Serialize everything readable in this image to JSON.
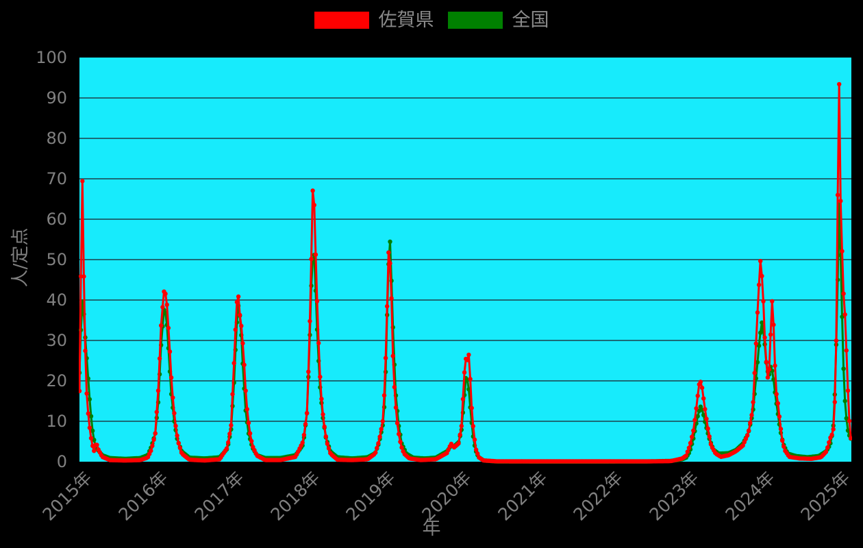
{
  "page": {
    "background": "#000000",
    "text_color": "#808080"
  },
  "legend": {
    "items": [
      {
        "label": "佐賀県",
        "color": "#ff0000"
      },
      {
        "label": "全国",
        "color": "#008000"
      }
    ]
  },
  "chart_data": {
    "type": "line",
    "title": "",
    "xlabel": "年",
    "ylabel": "人/定点",
    "xlim": [
      2015.0,
      2025.18
    ],
    "ylim": [
      0,
      100
    ],
    "y_ticks": [
      0,
      10,
      20,
      30,
      40,
      50,
      60,
      70,
      80,
      90,
      100
    ],
    "x_ticks": [
      {
        "t": 2015,
        "label": "2015年"
      },
      {
        "t": 2016,
        "label": "2016年"
      },
      {
        "t": 2017,
        "label": "2017年"
      },
      {
        "t": 2018,
        "label": "2018年"
      },
      {
        "t": 2019,
        "label": "2019年"
      },
      {
        "t": 2020,
        "label": "2020年"
      },
      {
        "t": 2021,
        "label": "2021年"
      },
      {
        "t": 2022,
        "label": "2022年"
      },
      {
        "t": 2023,
        "label": "2023年"
      },
      {
        "t": 2024,
        "label": "2024年"
      },
      {
        "t": 2025,
        "label": "2025年"
      }
    ],
    "grid": "horizontal-only",
    "plot_bg": "#17ebfc",
    "grid_color": "#1b6a76",
    "legend_position": "top-center",
    "marker": "circle",
    "sampling": "weekly",
    "series": [
      {
        "name": "佐賀県",
        "color": "#ff0000",
        "points": [
          [
            2015.0,
            17.5
          ],
          [
            2015.02,
            47
          ],
          [
            2015.04,
            71.3
          ],
          [
            2015.06,
            42.5
          ],
          [
            2015.08,
            24.7
          ],
          [
            2015.1,
            15
          ],
          [
            2015.13,
            9
          ],
          [
            2015.16,
            5
          ],
          [
            2015.19,
            2.5
          ],
          [
            2015.22,
            4.8
          ],
          [
            2015.25,
            3
          ],
          [
            2015.3,
            1.2
          ],
          [
            2015.4,
            0.4
          ],
          [
            2015.6,
            0.3
          ],
          [
            2015.8,
            0.4
          ],
          [
            2015.9,
            1
          ],
          [
            2015.95,
            3
          ],
          [
            2016.0,
            7
          ],
          [
            2016.04,
            18
          ],
          [
            2016.08,
            35
          ],
          [
            2016.12,
            43
          ],
          [
            2016.15,
            40
          ],
          [
            2016.19,
            28
          ],
          [
            2016.22,
            18
          ],
          [
            2016.26,
            10
          ],
          [
            2016.3,
            5
          ],
          [
            2016.35,
            2
          ],
          [
            2016.45,
            0.5
          ],
          [
            2016.65,
            0.3
          ],
          [
            2016.85,
            0.6
          ],
          [
            2016.95,
            3.5
          ],
          [
            2017.0,
            9
          ],
          [
            2017.04,
            25
          ],
          [
            2017.07,
            38
          ],
          [
            2017.09,
            42.3
          ],
          [
            2017.12,
            35.2
          ],
          [
            2017.14,
            33
          ],
          [
            2017.17,
            25
          ],
          [
            2017.2,
            15
          ],
          [
            2017.24,
            8
          ],
          [
            2017.28,
            4
          ],
          [
            2017.34,
            1.5
          ],
          [
            2017.45,
            0.4
          ],
          [
            2017.65,
            0.4
          ],
          [
            2017.85,
            1.2
          ],
          [
            2017.95,
            5
          ],
          [
            2018.0,
            12
          ],
          [
            2018.03,
            28
          ],
          [
            2018.06,
            52
          ],
          [
            2018.08,
            69.8
          ],
          [
            2018.1,
            62
          ],
          [
            2018.12,
            48
          ],
          [
            2018.15,
            31
          ],
          [
            2018.18,
            18
          ],
          [
            2018.22,
            10
          ],
          [
            2018.26,
            5
          ],
          [
            2018.31,
            2
          ],
          [
            2018.4,
            0.5
          ],
          [
            2018.6,
            0.4
          ],
          [
            2018.8,
            0.6
          ],
          [
            2018.9,
            2
          ],
          [
            2018.95,
            5
          ],
          [
            2019.0,
            10
          ],
          [
            2019.03,
            20
          ],
          [
            2019.06,
            40
          ],
          [
            2019.08,
            53.9
          ],
          [
            2019.11,
            45
          ],
          [
            2019.13,
            28
          ],
          [
            2019.16,
            16
          ],
          [
            2019.2,
            8
          ],
          [
            2019.24,
            4
          ],
          [
            2019.28,
            2
          ],
          [
            2019.35,
            0.8
          ],
          [
            2019.5,
            0.4
          ],
          [
            2019.7,
            0.6
          ],
          [
            2019.85,
            2.2
          ],
          [
            2019.9,
            4.5
          ],
          [
            2019.94,
            3.5
          ],
          [
            2020.0,
            4.5
          ],
          [
            2020.04,
            9
          ],
          [
            2020.07,
            20
          ],
          [
            2020.09,
            26
          ],
          [
            2020.11,
            24.2
          ],
          [
            2020.13,
            27.8
          ],
          [
            2020.15,
            22
          ],
          [
            2020.17,
            14
          ],
          [
            2020.2,
            7
          ],
          [
            2020.23,
            3
          ],
          [
            2020.27,
            1
          ],
          [
            2020.33,
            0.3
          ],
          [
            2020.5,
            0.1
          ],
          [
            2021.0,
            0.08
          ],
          [
            2021.5,
            0.08
          ],
          [
            2022.0,
            0.08
          ],
          [
            2022.5,
            0.08
          ],
          [
            2022.8,
            0.15
          ],
          [
            2022.95,
            0.8
          ],
          [
            2023.0,
            1.5
          ],
          [
            2023.05,
            4
          ],
          [
            2023.1,
            8
          ],
          [
            2023.14,
            14
          ],
          [
            2023.17,
            19
          ],
          [
            2023.19,
            19.9
          ],
          [
            2023.21,
            18.5
          ],
          [
            2023.25,
            13
          ],
          [
            2023.29,
            8
          ],
          [
            2023.33,
            4
          ],
          [
            2023.39,
            2
          ],
          [
            2023.46,
            1.2
          ],
          [
            2023.56,
            1.6
          ],
          [
            2023.66,
            2.6
          ],
          [
            2023.75,
            4
          ],
          [
            2023.82,
            7
          ],
          [
            2023.88,
            13
          ],
          [
            2023.92,
            28
          ],
          [
            2023.95,
            40
          ],
          [
            2023.98,
            49.8
          ],
          [
            2024.01,
            44
          ],
          [
            2024.04,
            30
          ],
          [
            2024.07,
            21
          ],
          [
            2024.09,
            20.5
          ],
          [
            2024.11,
            28
          ],
          [
            2024.13,
            40.8
          ],
          [
            2024.15,
            36
          ],
          [
            2024.17,
            25
          ],
          [
            2024.19,
            17
          ],
          [
            2024.21,
            14.7
          ],
          [
            2024.23,
            11.3
          ],
          [
            2024.25,
            8.1
          ],
          [
            2024.27,
            5.1
          ],
          [
            2024.3,
            2.9
          ],
          [
            2024.36,
            1.2
          ],
          [
            2024.5,
            0.8
          ],
          [
            2024.65,
            0.7
          ],
          [
            2024.78,
            1.1
          ],
          [
            2024.85,
            2.5
          ],
          [
            2024.9,
            5.8
          ],
          [
            2024.94,
            7.3
          ],
          [
            2024.96,
            13.6
          ],
          [
            2024.98,
            28.5
          ],
          [
            2025.0,
            66
          ],
          [
            2025.02,
            94.5
          ],
          [
            2025.04,
            62
          ],
          [
            2025.06,
            50.8
          ],
          [
            2025.08,
            39.9
          ],
          [
            2025.1,
            35.6
          ],
          [
            2025.12,
            25.1
          ],
          [
            2025.14,
            14.8
          ],
          [
            2025.16,
            8
          ],
          [
            2025.18,
            4.6
          ]
        ]
      },
      {
        "name": "全国",
        "color": "#008000",
        "points": [
          [
            2015.0,
            22
          ],
          [
            2015.02,
            33
          ],
          [
            2015.04,
            40.2
          ],
          [
            2015.06,
            36
          ],
          [
            2015.08,
            29.8
          ],
          [
            2015.11,
            22
          ],
          [
            2015.14,
            14
          ],
          [
            2015.17,
            8
          ],
          [
            2015.2,
            4.5
          ],
          [
            2015.24,
            3
          ],
          [
            2015.3,
            1.6
          ],
          [
            2015.4,
            0.9
          ],
          [
            2015.6,
            0.7
          ],
          [
            2015.8,
            0.9
          ],
          [
            2015.9,
            1.6
          ],
          [
            2015.95,
            3.8
          ],
          [
            2016.0,
            7
          ],
          [
            2016.04,
            15
          ],
          [
            2016.08,
            30
          ],
          [
            2016.12,
            38.5
          ],
          [
            2016.15,
            35
          ],
          [
            2016.18,
            26
          ],
          [
            2016.21,
            17
          ],
          [
            2016.25,
            10
          ],
          [
            2016.29,
            5.5
          ],
          [
            2016.35,
            2.5
          ],
          [
            2016.45,
            1
          ],
          [
            2016.65,
            0.8
          ],
          [
            2016.85,
            1.1
          ],
          [
            2016.95,
            3.2
          ],
          [
            2017.0,
            8
          ],
          [
            2017.04,
            20
          ],
          [
            2017.07,
            33
          ],
          [
            2017.1,
            39.4
          ],
          [
            2017.13,
            33
          ],
          [
            2017.16,
            22
          ],
          [
            2017.19,
            13
          ],
          [
            2017.23,
            7
          ],
          [
            2017.28,
            3.5
          ],
          [
            2017.34,
            1.6
          ],
          [
            2017.45,
            0.9
          ],
          [
            2017.65,
            0.9
          ],
          [
            2017.85,
            1.6
          ],
          [
            2017.95,
            4.2
          ],
          [
            2018.0,
            12
          ],
          [
            2018.03,
            26
          ],
          [
            2018.06,
            45
          ],
          [
            2018.09,
            53.9
          ],
          [
            2018.11,
            45
          ],
          [
            2018.14,
            30
          ],
          [
            2018.17,
            19
          ],
          [
            2018.21,
            11
          ],
          [
            2018.25,
            6
          ],
          [
            2018.31,
            2.5
          ],
          [
            2018.4,
            1.1
          ],
          [
            2018.6,
            0.8
          ],
          [
            2018.8,
            1.1
          ],
          [
            2018.9,
            2.1
          ],
          [
            2018.95,
            4.6
          ],
          [
            2019.0,
            9
          ],
          [
            2019.03,
            16
          ],
          [
            2019.06,
            38
          ],
          [
            2019.09,
            57.3
          ],
          [
            2019.11,
            48
          ],
          [
            2019.14,
            30
          ],
          [
            2019.17,
            17
          ],
          [
            2019.21,
            9
          ],
          [
            2019.25,
            4.5
          ],
          [
            2019.31,
            2
          ],
          [
            2019.4,
            1
          ],
          [
            2019.55,
            0.8
          ],
          [
            2019.7,
            1
          ],
          [
            2019.85,
            2.6
          ],
          [
            2019.9,
            4
          ],
          [
            2019.94,
            3.8
          ],
          [
            2020.0,
            4.8
          ],
          [
            2020.04,
            8
          ],
          [
            2020.07,
            15
          ],
          [
            2020.1,
            21.5
          ],
          [
            2020.13,
            19
          ],
          [
            2020.16,
            12
          ],
          [
            2020.19,
            6.5
          ],
          [
            2020.22,
            3
          ],
          [
            2020.26,
            1.2
          ],
          [
            2020.33,
            0.3
          ],
          [
            2020.5,
            0.06
          ],
          [
            2021.0,
            0.04
          ],
          [
            2021.5,
            0.04
          ],
          [
            2022.0,
            0.04
          ],
          [
            2022.5,
            0.06
          ],
          [
            2022.8,
            0.2
          ],
          [
            2022.95,
            0.6
          ],
          [
            2023.0,
            1
          ],
          [
            2023.05,
            2.5
          ],
          [
            2023.1,
            6
          ],
          [
            2023.15,
            11
          ],
          [
            2023.19,
            13.7
          ],
          [
            2023.22,
            12.5
          ],
          [
            2023.26,
            9
          ],
          [
            2023.31,
            5.5
          ],
          [
            2023.36,
            3
          ],
          [
            2023.43,
            2
          ],
          [
            2023.56,
            2.1
          ],
          [
            2023.66,
            2.9
          ],
          [
            2023.75,
            4.5
          ],
          [
            2023.82,
            7
          ],
          [
            2023.88,
            12
          ],
          [
            2023.93,
            22
          ],
          [
            2023.97,
            30.5
          ],
          [
            2024.0,
            34.4
          ],
          [
            2024.03,
            31
          ],
          [
            2024.06,
            24
          ],
          [
            2024.09,
            21
          ],
          [
            2024.12,
            23.9
          ],
          [
            2024.15,
            21
          ],
          [
            2024.18,
            16
          ],
          [
            2024.21,
            12
          ],
          [
            2024.24,
            8
          ],
          [
            2024.28,
            4.5
          ],
          [
            2024.34,
            2
          ],
          [
            2024.45,
            1.4
          ],
          [
            2024.6,
            1.1
          ],
          [
            2024.75,
            1.4
          ],
          [
            2024.85,
            2.6
          ],
          [
            2024.9,
            4.2
          ],
          [
            2024.94,
            8
          ],
          [
            2024.97,
            20
          ],
          [
            2025.0,
            45
          ],
          [
            2025.02,
            64.4
          ],
          [
            2025.04,
            50
          ],
          [
            2025.06,
            34
          ],
          [
            2025.08,
            21
          ],
          [
            2025.1,
            13.6
          ],
          [
            2025.13,
            8
          ],
          [
            2025.16,
            6.1
          ],
          [
            2025.18,
            5.5
          ]
        ]
      }
    ]
  }
}
